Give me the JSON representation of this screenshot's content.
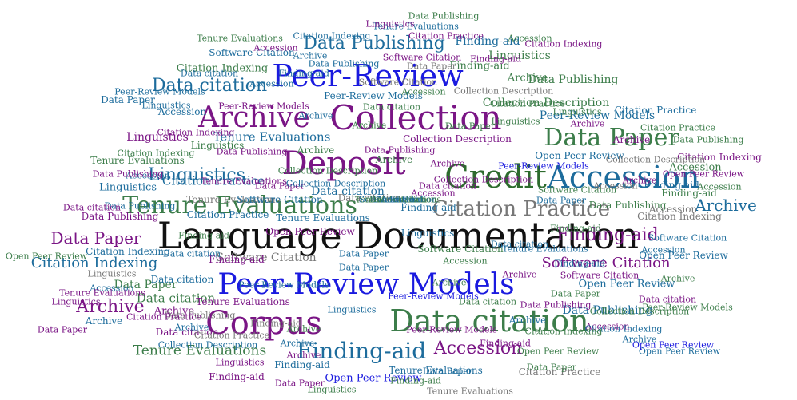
{
  "colors": {
    "black": "#111111",
    "blue": "#1a1adf",
    "purple": "#7a1585",
    "teal": "#1d6c9c",
    "green": "#3c7d4a",
    "darkgreen": "#2d6b2d",
    "gray": "#777777"
  },
  "words": [
    {
      "text": "Language Documentation",
      "color": "black"
    },
    {
      "text": "Peer-Review Models",
      "color": "blue"
    },
    {
      "text": "Peer-Review",
      "color": "blue"
    },
    {
      "text": "Credit",
      "color": "darkgreen"
    },
    {
      "text": "Accession",
      "color": "teal"
    },
    {
      "text": "Deposit",
      "color": "purple"
    },
    {
      "text": "Corpus",
      "color": "purple"
    },
    {
      "text": "Collection",
      "color": "purple"
    },
    {
      "text": "Archive",
      "color": "purple"
    },
    {
      "text": "Data citation",
      "color": "green"
    },
    {
      "text": "Data Paper",
      "color": "green"
    },
    {
      "text": "Tenure Evaluations",
      "color": "green"
    },
    {
      "text": "Citation Practice",
      "color": "gray"
    },
    {
      "text": "Finding-aid",
      "color": "teal"
    },
    {
      "text": "Data Publishing",
      "color": "teal"
    },
    {
      "text": "Data citation",
      "color": "teal"
    },
    {
      "text": "Linguistics",
      "color": "teal"
    },
    {
      "text": "Software Citation",
      "color": "purple"
    },
    {
      "text": "Citation Indexing",
      "color": "teal"
    },
    {
      "text": "Data Paper",
      "color": "purple"
    },
    {
      "text": "Archive",
      "color": "purple"
    },
    {
      "text": "Finding-aid",
      "color": "purple"
    },
    {
      "text": "Accession",
      "color": "purple"
    },
    {
      "text": "Finding-aid",
      "color": "teal"
    },
    {
      "text": "Accession",
      "color": "green"
    },
    {
      "text": "Archive",
      "color": "teal"
    },
    {
      "text": "Linguistics",
      "color": "green"
    },
    {
      "text": "Tenure Evaluations",
      "color": "teal"
    },
    {
      "text": "Data Publishing",
      "color": "green"
    },
    {
      "text": "Finding-aid",
      "color": "green"
    },
    {
      "text": "Collection Description",
      "color": "green"
    },
    {
      "text": "Software Citation",
      "color": "teal"
    },
    {
      "text": "Citation Practice",
      "color": "teal"
    },
    {
      "text": "Citation Indexing",
      "color": "green"
    },
    {
      "text": "Open Peer Review",
      "color": "teal"
    },
    {
      "text": "Peer-Review Models",
      "color": "teal"
    },
    {
      "text": "Data citation",
      "color": "green"
    },
    {
      "text": "Archive",
      "color": "teal"
    },
    {
      "text": "Linguistics",
      "color": "purple"
    },
    {
      "text": "Data Paper",
      "color": "green"
    },
    {
      "text": "Tenure Evaluations",
      "color": "green"
    },
    {
      "text": "Archive",
      "color": "purple"
    },
    {
      "text": "Citation Practice",
      "color": "gray"
    },
    {
      "text": "Finding-aid",
      "color": "teal"
    },
    {
      "text": "Data Publishing",
      "color": "teal"
    },
    {
      "text": "Accession",
      "color": "green"
    },
    {
      "text": "Collection Description",
      "color": "purple"
    },
    {
      "text": "Open Peer Review",
      "color": "blue"
    },
    {
      "text": "Tenure Evaluations",
      "color": "teal"
    },
    {
      "text": "Software Citation",
      "color": "gray"
    },
    {
      "text": "Citation Indexing",
      "color": "green"
    },
    {
      "text": "Data citation",
      "color": "teal"
    },
    {
      "text": "Archive",
      "color": "green"
    },
    {
      "text": "Data Paper",
      "color": "purple"
    },
    {
      "text": "Linguistics",
      "color": "teal"
    },
    {
      "text": "Data Publishing",
      "color": "purple"
    },
    {
      "text": "Peer-Review Models",
      "color": "teal"
    },
    {
      "text": "Archive",
      "color": "teal"
    },
    {
      "text": "Accession",
      "color": "teal"
    },
    {
      "text": "Finding-aid",
      "color": "green"
    },
    {
      "text": "Data citation",
      "color": "purple"
    },
    {
      "text": "Archive",
      "color": "green"
    },
    {
      "text": "Citation Practice",
      "color": "teal"
    },
    {
      "text": "Tenure Evaluations",
      "color": "gray"
    },
    {
      "text": "Open Peer Review",
      "color": "teal"
    },
    {
      "text": "Finding-aid",
      "color": "teal"
    },
    {
      "text": "Data Publishing",
      "color": "green"
    },
    {
      "text": "Citation Indexing",
      "color": "purple"
    },
    {
      "text": "Accession",
      "color": "teal"
    },
    {
      "text": "Archive",
      "color": "purple"
    },
    {
      "text": "Linguistics",
      "color": "green"
    },
    {
      "text": "Data Paper",
      "color": "teal"
    },
    {
      "text": "Collection Description",
      "color": "gray"
    },
    {
      "text": "Data citation",
      "color": "teal"
    },
    {
      "text": "Tenure Evaluations",
      "color": "purple"
    },
    {
      "text": "Software Citation",
      "color": "green"
    },
    {
      "text": "Finding-aid",
      "color": "purple"
    },
    {
      "text": "Archive",
      "color": "teal"
    },
    {
      "text": "Accession",
      "color": "purple"
    },
    {
      "text": "Peer-Review Models",
      "color": "blue"
    },
    {
      "text": "Data Paper",
      "color": "green"
    },
    {
      "text": "Data Publishing",
      "color": "purple"
    },
    {
      "text": "Citation Indexing",
      "color": "teal"
    },
    {
      "text": "Archive",
      "color": "green"
    },
    {
      "text": "Linguistics",
      "color": "purple"
    },
    {
      "text": "Open Peer Review",
      "color": "green"
    },
    {
      "text": "Finding-aid",
      "color": "teal"
    },
    {
      "text": "Data citation",
      "color": "purple"
    },
    {
      "text": "Tenure Evaluations",
      "color": "teal"
    },
    {
      "text": "Accession",
      "color": "gray"
    },
    {
      "text": "Citation Practice",
      "color": "green"
    },
    {
      "text": "Data Paper",
      "color": "purple"
    },
    {
      "text": "Archive",
      "color": "teal"
    },
    {
      "text": "Software Citation",
      "color": "teal"
    },
    {
      "text": "Collection Description",
      "color": "teal"
    },
    {
      "text": "Linguistics",
      "color": "gray"
    },
    {
      "text": "Data Publishing",
      "color": "green"
    },
    {
      "text": "Finding-aid",
      "color": "purple"
    },
    {
      "text": "Archive",
      "color": "purple"
    },
    {
      "text": "Peer-Review Models",
      "color": "teal"
    },
    {
      "text": "Data citation",
      "color": "green"
    },
    {
      "text": "Accession",
      "color": "teal"
    },
    {
      "text": "Citation Indexing",
      "color": "gray"
    },
    {
      "text": "Data Paper",
      "color": "teal"
    },
    {
      "text": "Tenure Evaluations",
      "color": "green"
    },
    {
      "text": "Open Peer Review",
      "color": "purple"
    },
    {
      "text": "Archive",
      "color": "green"
    },
    {
      "text": "Finding-aid",
      "color": "green"
    },
    {
      "text": "Linguistics",
      "color": "teal"
    },
    {
      "text": "Data Publishing",
      "color": "purple"
    },
    {
      "text": "Citation Practice",
      "color": "purple"
    },
    {
      "text": "Software Citation",
      "color": "purple"
    },
    {
      "text": "Accession",
      "color": "green"
    },
    {
      "text": "Data citation",
      "color": "teal"
    },
    {
      "text": "Archive",
      "color": "purple"
    },
    {
      "text": "Collection Description",
      "color": "green"
    },
    {
      "text": "Data Paper",
      "color": "green"
    },
    {
      "text": "Tenure Evaluations",
      "color": "teal"
    },
    {
      "text": "Peer-Review Models",
      "color": "purple"
    },
    {
      "text": "Finding-aid",
      "color": "gray"
    },
    {
      "text": "Citation Indexing",
      "color": "purple"
    },
    {
      "text": "Linguistics",
      "color": "green"
    },
    {
      "text": "Open Peer Review",
      "color": "teal"
    },
    {
      "text": "Archive",
      "color": "teal"
    },
    {
      "text": "Data Publishing",
      "color": "teal"
    },
    {
      "text": "Accession",
      "color": "purple"
    },
    {
      "text": "Data citation",
      "color": "gray"
    },
    {
      "text": "Software Citation",
      "color": "green"
    },
    {
      "text": "Data Paper",
      "color": "teal"
    },
    {
      "text": "Citation Practice",
      "color": "teal"
    },
    {
      "text": "Tenure Evaluations",
      "color": "purple"
    },
    {
      "text": "Finding-aid",
      "color": "teal"
    },
    {
      "text": "Archive",
      "color": "green"
    },
    {
      "text": "Linguistics",
      "color": "purple"
    },
    {
      "text": "Collection Description",
      "color": "teal"
    },
    {
      "text": "Peer-Review Models",
      "color": "green"
    },
    {
      "text": "Accession",
      "color": "teal"
    },
    {
      "text": "Data citation",
      "color": "purple"
    },
    {
      "text": "Data Publishing",
      "color": "gray"
    },
    {
      "text": "Citation Indexing",
      "color": "teal"
    },
    {
      "text": "Open Peer Review",
      "color": "green"
    },
    {
      "text": "Archive",
      "color": "purple"
    },
    {
      "text": "Data Paper",
      "color": "gray"
    },
    {
      "text": "Finding-aid",
      "color": "purple"
    },
    {
      "text": "Tenure Evaluations",
      "color": "green"
    },
    {
      "text": "Linguistics",
      "color": "teal"
    },
    {
      "text": "Software Citation",
      "color": "teal"
    },
    {
      "text": "Accession",
      "color": "green"
    },
    {
      "text": "Citation Practice",
      "color": "purple"
    },
    {
      "text": "Data citation",
      "color": "teal"
    },
    {
      "text": "Archive",
      "color": "teal"
    },
    {
      "text": "Data Publishing",
      "color": "purple"
    },
    {
      "text": "Collection Description",
      "color": "purple"
    },
    {
      "text": "Peer-Review Models",
      "color": "teal"
    },
    {
      "text": "Finding-aid",
      "color": "green"
    },
    {
      "text": "Data Paper",
      "color": "purple"
    },
    {
      "text": "Citation Indexing",
      "color": "green"
    },
    {
      "text": "Open Peer Review",
      "color": "purple"
    },
    {
      "text": "Accession",
      "color": "gray"
    },
    {
      "text": "Linguistics",
      "color": "green"
    },
    {
      "text": "Tenure Evaluations",
      "color": "teal"
    },
    {
      "text": "Archive",
      "color": "green"
    },
    {
      "text": "Data citation",
      "color": "green"
    },
    {
      "text": "Software Citation",
      "color": "purple"
    },
    {
      "text": "Data Publishing",
      "color": "teal"
    },
    {
      "text": "Finding-aid",
      "color": "teal"
    },
    {
      "text": "Citation Practice",
      "color": "green"
    },
    {
      "text": "Data Paper",
      "color": "teal"
    },
    {
      "text": "Archive",
      "color": "purple"
    },
    {
      "text": "Accession",
      "color": "teal"
    },
    {
      "text": "Peer-Review Models",
      "color": "purple"
    },
    {
      "text": "Collection Description",
      "color": "gray"
    },
    {
      "text": "Linguistics",
      "color": "purple"
    },
    {
      "text": "Tenure Evaluations",
      "color": "gray"
    },
    {
      "text": "Citation Indexing",
      "color": "teal"
    },
    {
      "text": "Open Peer Review",
      "color": "teal"
    },
    {
      "text": "Data citation",
      "color": "purple"
    },
    {
      "text": "Finding-aid",
      "color": "purple"
    },
    {
      "text": "Archive",
      "color": "teal"
    },
    {
      "text": "Data Publishing",
      "color": "green"
    },
    {
      "text": "Software Citation",
      "color": "gray"
    },
    {
      "text": "Accession",
      "color": "purple"
    },
    {
      "text": "Data Paper",
      "color": "green"
    },
    {
      "text": "Linguistics",
      "color": "teal"
    },
    {
      "text": "Tenure Evaluations",
      "color": "purple"
    },
    {
      "text": "Archive",
      "color": "green"
    },
    {
      "text": "Citation Practice",
      "color": "gray"
    },
    {
      "text": "Collection Description",
      "color": "green"
    },
    {
      "text": "Finding-aid",
      "color": "green"
    },
    {
      "text": "Data citation",
      "color": "teal"
    },
    {
      "text": "Peer-Review Models",
      "color": "blue"
    },
    {
      "text": "Accession",
      "color": "green"
    },
    {
      "text": "Data Publishing",
      "color": "purple"
    },
    {
      "text": "Open Peer Review",
      "color": "blue"
    },
    {
      "text": "Citation Indexing",
      "color": "purple"
    },
    {
      "text": "Archive",
      "color": "purple"
    },
    {
      "text": "Data Paper",
      "color": "teal"
    },
    {
      "text": "Linguistics",
      "color": "green"
    },
    {
      "text": "Software Citation",
      "color": "teal"
    },
    {
      "text": "Tenure Evaluations",
      "color": "green"
    },
    {
      "text": "Finding-aid",
      "color": "teal"
    },
    {
      "text": "Accession",
      "color": "teal"
    },
    {
      "text": "Data citation",
      "color": "green"
    },
    {
      "text": "Archive",
      "color": "teal"
    }
  ]
}
